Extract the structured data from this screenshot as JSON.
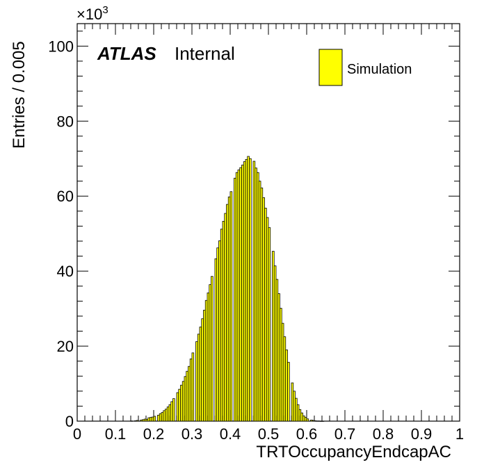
{
  "chart_data": {
    "type": "bar",
    "xlabel": "TRTOccupancyEndcapAC",
    "ylabel": "Entries / 0.005",
    "y_multiplier_base": "×10",
    "y_multiplier_exp": "3",
    "xlim": [
      0,
      1
    ],
    "ylim": [
      0,
      106
    ],
    "bin_width": 0.005,
    "grid": false,
    "x_ticks": [
      {
        "value": 0,
        "label": "0"
      },
      {
        "value": 0.1,
        "label": "0.1"
      },
      {
        "value": 0.2,
        "label": "0.2"
      },
      {
        "value": 0.3,
        "label": "0.3"
      },
      {
        "value": 0.4,
        "label": "0.4"
      },
      {
        "value": 0.5,
        "label": "0.5"
      },
      {
        "value": 0.6,
        "label": "0.6"
      },
      {
        "value": 0.7,
        "label": "0.7"
      },
      {
        "value": 0.8,
        "label": "0.8"
      },
      {
        "value": 0.9,
        "label": "0.9"
      },
      {
        "value": 1,
        "label": "1"
      }
    ],
    "y_ticks": [
      {
        "value": 0,
        "label": "0"
      },
      {
        "value": 20,
        "label": "20"
      },
      {
        "value": 40,
        "label": "40"
      },
      {
        "value": 60,
        "label": "60"
      },
      {
        "value": 80,
        "label": "80"
      },
      {
        "value": 100,
        "label": "100"
      }
    ],
    "atlas_label": "ATLAS",
    "atlas_status": "Internal",
    "legend": {
      "position": "top-right",
      "entries": [
        {
          "label": "Simulation",
          "color": "#ffff00"
        }
      ]
    },
    "series": [
      {
        "name": "Simulation",
        "color": "#ffff00",
        "edge_color": "#000000",
        "x": [
          0.14,
          0.15,
          0.155,
          0.165,
          0.17,
          0.175,
          0.18,
          0.185,
          0.19,
          0.195,
          0.2,
          0.21,
          0.215,
          0.22,
          0.225,
          0.23,
          0.235,
          0.24,
          0.245,
          0.25,
          0.26,
          0.265,
          0.27,
          0.275,
          0.28,
          0.285,
          0.29,
          0.295,
          0.3,
          0.31,
          0.315,
          0.32,
          0.325,
          0.33,
          0.335,
          0.34,
          0.345,
          0.35,
          0.36,
          0.365,
          0.37,
          0.375,
          0.38,
          0.385,
          0.39,
          0.395,
          0.4,
          0.41,
          0.415,
          0.42,
          0.425,
          0.43,
          0.435,
          0.44,
          0.445,
          0.45,
          0.46,
          0.465,
          0.47,
          0.475,
          0.48,
          0.485,
          0.49,
          0.495,
          0.5,
          0.51,
          0.515,
          0.52,
          0.525,
          0.53,
          0.535,
          0.54,
          0.545,
          0.55,
          0.56,
          0.565,
          0.57,
          0.575,
          0.58,
          0.585,
          0.59,
          0.595,
          0.6,
          0.61,
          0.615,
          0.62,
          0.625,
          0.63,
          0.635,
          0.64,
          0.645,
          0.65,
          0.66,
          0.665,
          0.67,
          0.675,
          0.68,
          0.685,
          0.69,
          0.695
        ],
        "values": [
          0.05,
          0.1,
          0.2,
          0.3,
          0.4,
          0.55,
          0.5,
          0.9,
          1.0,
          1.1,
          1.3,
          1.6,
          2.0,
          2.3,
          2.8,
          3.2,
          3.8,
          4.4,
          5.2,
          6.0,
          7.6,
          8.5,
          9.6,
          10.6,
          11.9,
          13.3,
          14.6,
          16.6,
          18.2,
          21.2,
          23.2,
          25.1,
          27.3,
          29.6,
          32.2,
          34.2,
          36.4,
          38.6,
          43.3,
          46.2,
          48.1,
          51.2,
          53.3,
          55.4,
          57.8,
          59.8,
          61.2,
          64.8,
          66.3,
          67.0,
          67.6,
          68.3,
          69.2,
          69.8,
          70.6,
          70.0,
          69.3,
          67.5,
          66.3,
          64.0,
          62.2,
          59.6,
          56.8,
          54.3,
          51.6,
          45.3,
          41.4,
          37.8,
          34.0,
          30.1,
          26.1,
          22.5,
          19.0,
          15.7,
          10.2,
          8.0,
          6.1,
          4.4,
          3.1,
          2.2,
          1.4,
          1.0,
          0.6,
          0.3,
          0.2,
          0.1,
          0.05,
          0.05,
          0.02,
          0.02,
          0.0,
          0.0,
          0.0,
          0.0,
          0.0,
          0.0,
          0.0,
          0.0,
          0.0,
          0.0
        ]
      }
    ]
  }
}
